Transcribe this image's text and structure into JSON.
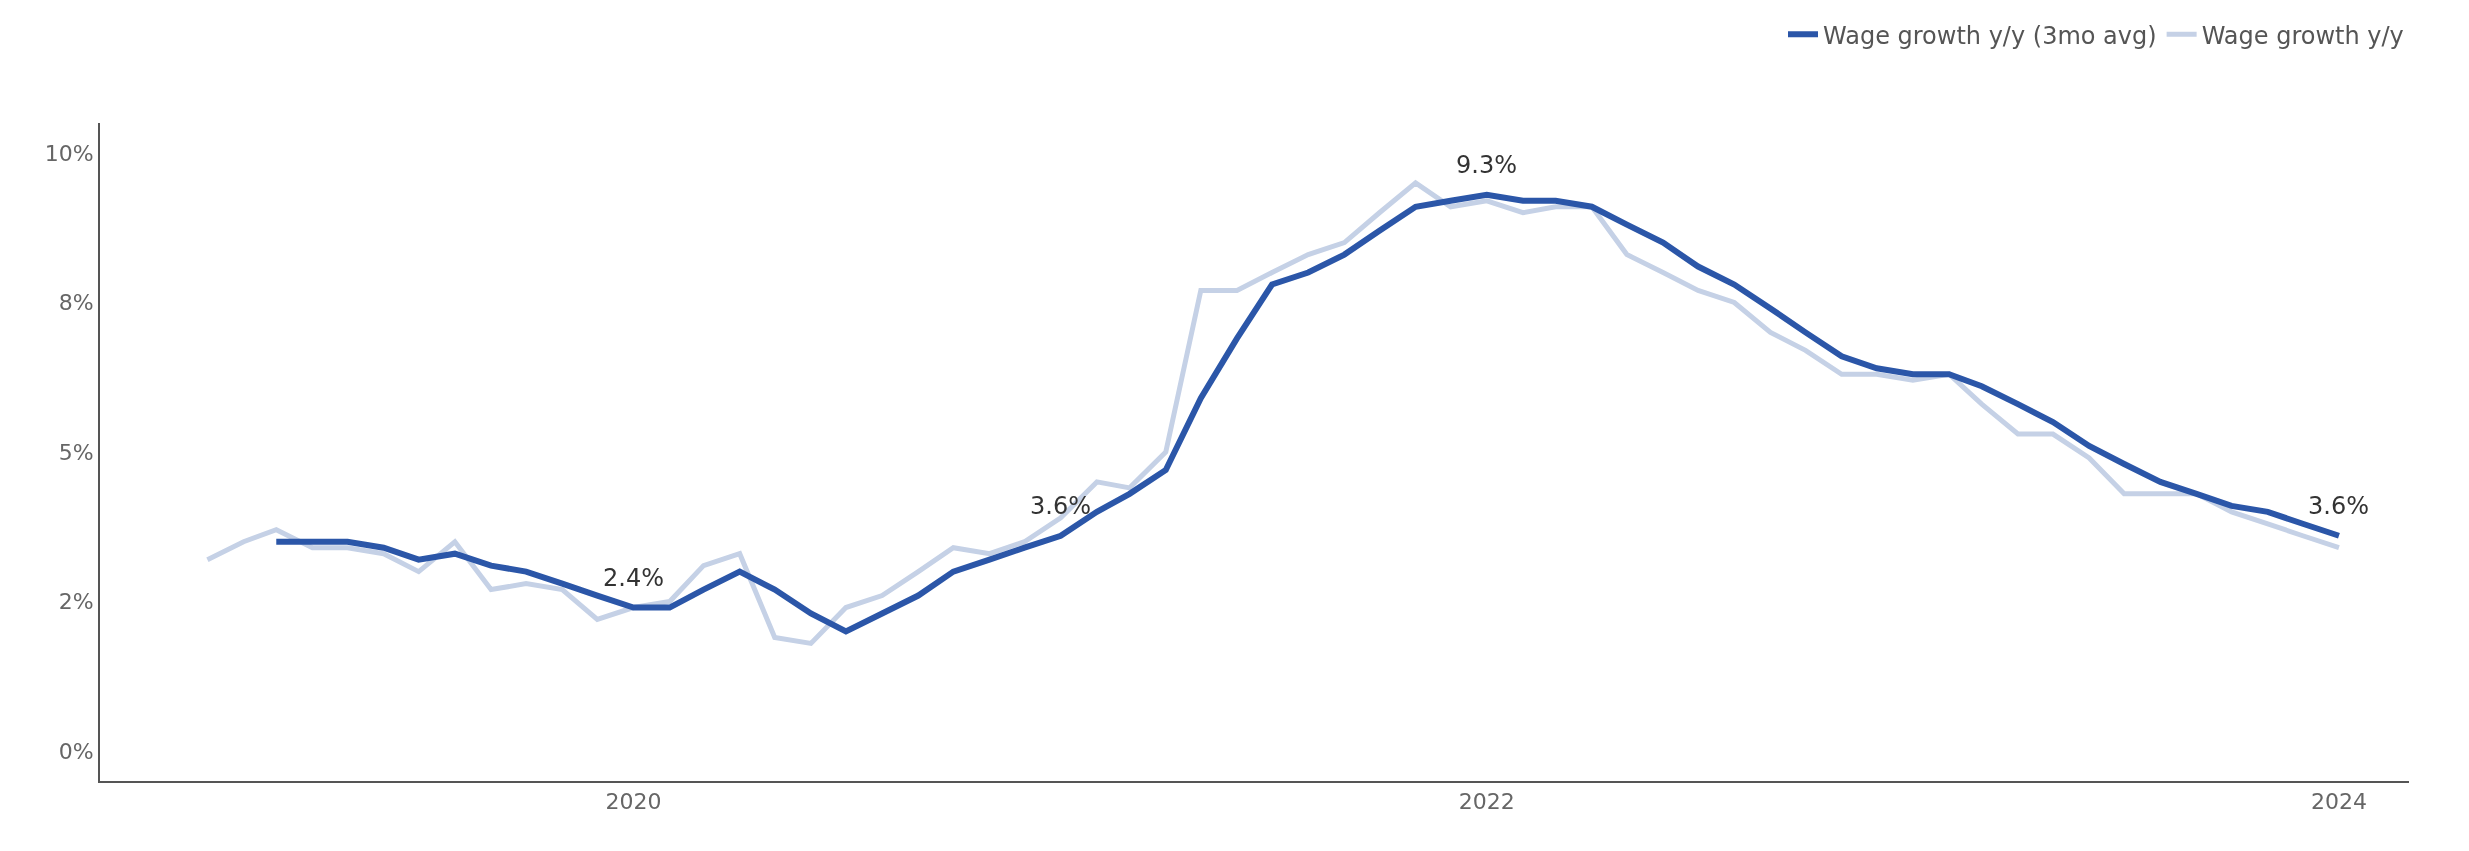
{
  "chart_data": {
    "type": "line",
    "x": [
      "2019-03",
      "2019-04",
      "2019-05",
      "2019-06",
      "2019-07",
      "2019-08",
      "2019-09",
      "2019-10",
      "2019-11",
      "2019-12",
      "2020-01",
      "2020-02",
      "2020-03",
      "2020-04",
      "2020-05",
      "2020-06",
      "2020-07",
      "2020-08",
      "2020-09",
      "2020-10",
      "2020-11",
      "2020-12",
      "2021-01",
      "2021-02",
      "2021-03",
      "2021-04",
      "2021-05",
      "2021-06",
      "2021-07",
      "2021-08",
      "2021-09",
      "2021-10",
      "2021-11",
      "2021-12",
      "2022-01",
      "2022-02",
      "2022-03",
      "2022-04",
      "2022-05",
      "2022-06",
      "2022-07",
      "2022-08",
      "2022-09",
      "2022-10",
      "2022-11",
      "2022-12",
      "2023-01",
      "2023-02",
      "2023-03",
      "2023-04",
      "2023-05",
      "2023-06",
      "2023-07",
      "2023-08",
      "2023-09",
      "2023-10",
      "2023-11",
      "2023-12",
      "2024-01"
    ],
    "series": [
      {
        "name": "Wage growth y/y (3mo avg)",
        "color": "#2b56a8",
        "values": [
          3.5,
          3.5,
          3.5,
          3.4,
          3.2,
          3.3,
          3.1,
          3.0,
          2.8,
          2.6,
          2.4,
          2.4,
          2.7,
          3.0,
          2.7,
          2.3,
          2.0,
          2.3,
          2.6,
          3.0,
          3.2,
          3.4,
          3.6,
          4.0,
          4.3,
          4.7,
          5.9,
          6.9,
          7.8,
          8.0,
          8.3,
          8.7,
          9.1,
          9.2,
          9.3,
          9.2,
          9.2,
          9.1,
          8.8,
          8.5,
          8.1,
          7.8,
          7.4,
          7.0,
          6.6,
          6.4,
          6.3,
          6.3,
          6.1,
          5.8,
          5.5,
          5.1,
          4.8,
          4.5,
          4.3,
          4.1,
          4.0,
          3.8,
          3.6
        ]
      },
      {
        "name": "Wage growth y/y",
        "color": "#c5d1e6",
        "x": [
          "2019-01",
          "2019-02",
          "2019-03",
          "2019-04",
          "2019-05",
          "2019-06",
          "2019-07",
          "2019-08",
          "2019-09",
          "2019-10",
          "2019-11",
          "2019-12",
          "2020-01",
          "2020-02",
          "2020-03",
          "2020-04",
          "2020-05",
          "2020-06",
          "2020-07",
          "2020-08",
          "2020-09",
          "2020-10",
          "2020-11",
          "2020-12",
          "2021-01",
          "2021-02",
          "2021-03",
          "2021-04",
          "2021-05",
          "2021-06",
          "2021-07",
          "2021-08",
          "2021-09",
          "2021-10",
          "2021-11",
          "2021-12",
          "2022-01",
          "2022-02",
          "2022-03",
          "2022-04",
          "2022-05",
          "2022-06",
          "2022-07",
          "2022-08",
          "2022-09",
          "2022-10",
          "2022-11",
          "2022-12",
          "2023-01",
          "2023-02",
          "2023-03",
          "2023-04",
          "2023-05",
          "2023-06",
          "2023-07",
          "2023-08",
          "2023-09",
          "2023-10",
          "2023-11",
          "2023-12",
          "2024-01"
        ],
        "values": [
          3.2,
          3.5,
          3.7,
          3.4,
          3.4,
          3.3,
          3.0,
          3.5,
          2.7,
          2.8,
          2.7,
          2.2,
          2.4,
          2.5,
          3.1,
          3.3,
          1.9,
          1.8,
          2.4,
          2.6,
          3.0,
          3.4,
          3.3,
          3.5,
          3.9,
          4.5,
          4.4,
          5.0,
          7.7,
          7.7,
          8.0,
          8.3,
          8.5,
          9.0,
          9.5,
          9.1,
          9.2,
          9.0,
          9.1,
          9.1,
          8.3,
          8.0,
          7.7,
          7.5,
          7.0,
          6.7,
          6.3,
          6.3,
          6.2,
          6.3,
          5.8,
          5.3,
          5.3,
          4.9,
          4.3,
          4.3,
          4.3,
          4.0,
          3.8,
          3.6,
          3.4
        ]
      }
    ],
    "annotations": [
      {
        "text": "2.4%",
        "x": "2020-01",
        "y": 2.4
      },
      {
        "text": "3.6%",
        "x": "2021-01",
        "y": 3.6
      },
      {
        "text": "9.3%",
        "x": "2022-01",
        "y": 9.3
      },
      {
        "text": "3.6%",
        "x": "2024-01",
        "y": 3.6
      }
    ],
    "xlim": [
      "2018-10",
      "2024-03"
    ],
    "xticks": [
      {
        "value": "2020-01",
        "label": "2020"
      },
      {
        "value": "2022-01",
        "label": "2022"
      },
      {
        "value": "2024-01",
        "label": "2024"
      }
    ],
    "ylim": [
      -0.5,
      10.5
    ],
    "yticks": [
      {
        "value": 0,
        "label": "0%"
      },
      {
        "value": 2.5,
        "label": "2%"
      },
      {
        "value": 5,
        "label": "5%"
      },
      {
        "value": 7.5,
        "label": "8%"
      },
      {
        "value": 10,
        "label": "10%"
      }
    ],
    "grid": false,
    "legend": "top right",
    "marker": "none",
    "line_style": "solid"
  }
}
